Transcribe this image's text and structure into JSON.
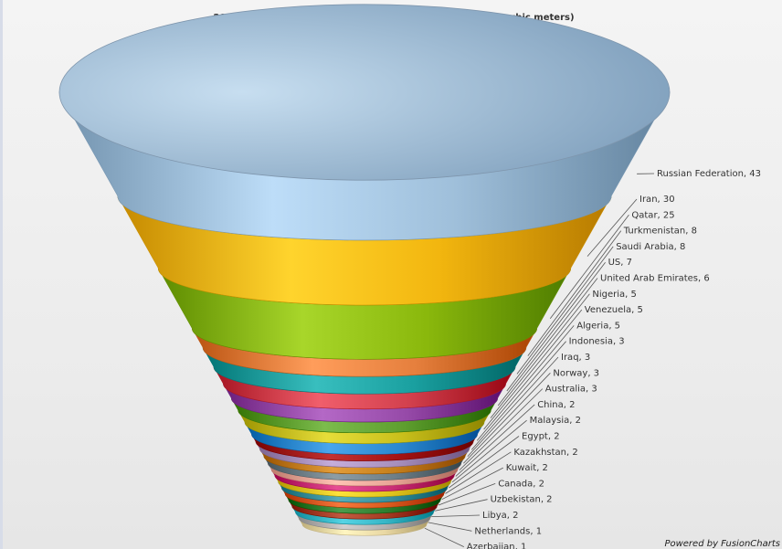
{
  "chart_data": {
    "type": "funnel",
    "title": "2008 Largest and Caspian Proved Gas Reserves (trillion cubic meters)",
    "footer": "Powered by FusionCharts",
    "series": [
      {
        "label": "Russian Federation",
        "value": 43,
        "color": "#9fbfda"
      },
      {
        "label": "Iran",
        "value": 30,
        "color": "#f2b60f"
      },
      {
        "label": "Qatar",
        "value": 25,
        "color": "#8ab80c"
      },
      {
        "label": "Turkmenistan",
        "value": 8,
        "color": "#e57f3d"
      },
      {
        "label": "Saudi Arabia",
        "value": 8,
        "color": "#1aa0a0"
      },
      {
        "label": "US",
        "value": 7,
        "color": "#d2404d"
      },
      {
        "label": "United Arab Emirates",
        "value": 6,
        "color": "#964aa8"
      },
      {
        "label": "Nigeria",
        "value": 5,
        "color": "#5e9e2e"
      },
      {
        "label": "Venezuela",
        "value": 5,
        "color": "#c8bf1b"
      },
      {
        "label": "Algeria",
        "value": 5,
        "color": "#2b88cf"
      },
      {
        "label": "Indonesia",
        "value": 3,
        "color": "#a51313"
      },
      {
        "label": "Iraq",
        "value": 3,
        "color": "#a78fbc"
      },
      {
        "label": "Norway",
        "value": 3,
        "color": "#c57f1b"
      },
      {
        "label": "Australia",
        "value": 3,
        "color": "#6f7f87"
      },
      {
        "label": "China",
        "value": 2,
        "color": "#e8a596"
      },
      {
        "label": "Malaysia",
        "value": 2,
        "color": "#c92e75"
      },
      {
        "label": "Egypt",
        "value": 2,
        "color": "#dfc41c"
      },
      {
        "label": "Kazakhstan",
        "value": 2,
        "color": "#3a8f9b"
      },
      {
        "label": "Kuwait",
        "value": 2,
        "color": "#d95a1e"
      },
      {
        "label": "Canada",
        "value": 2,
        "color": "#2e7d2e"
      },
      {
        "label": "Uzbekistan",
        "value": 2,
        "color": "#a43c22"
      },
      {
        "label": "Libya",
        "value": 2,
        "color": "#37b6c6"
      },
      {
        "label": "Netherlands",
        "value": 1,
        "color": "#b3b1b0"
      },
      {
        "label": "Azerbaijan",
        "value": 1,
        "color": "#e9d8a4"
      }
    ]
  }
}
